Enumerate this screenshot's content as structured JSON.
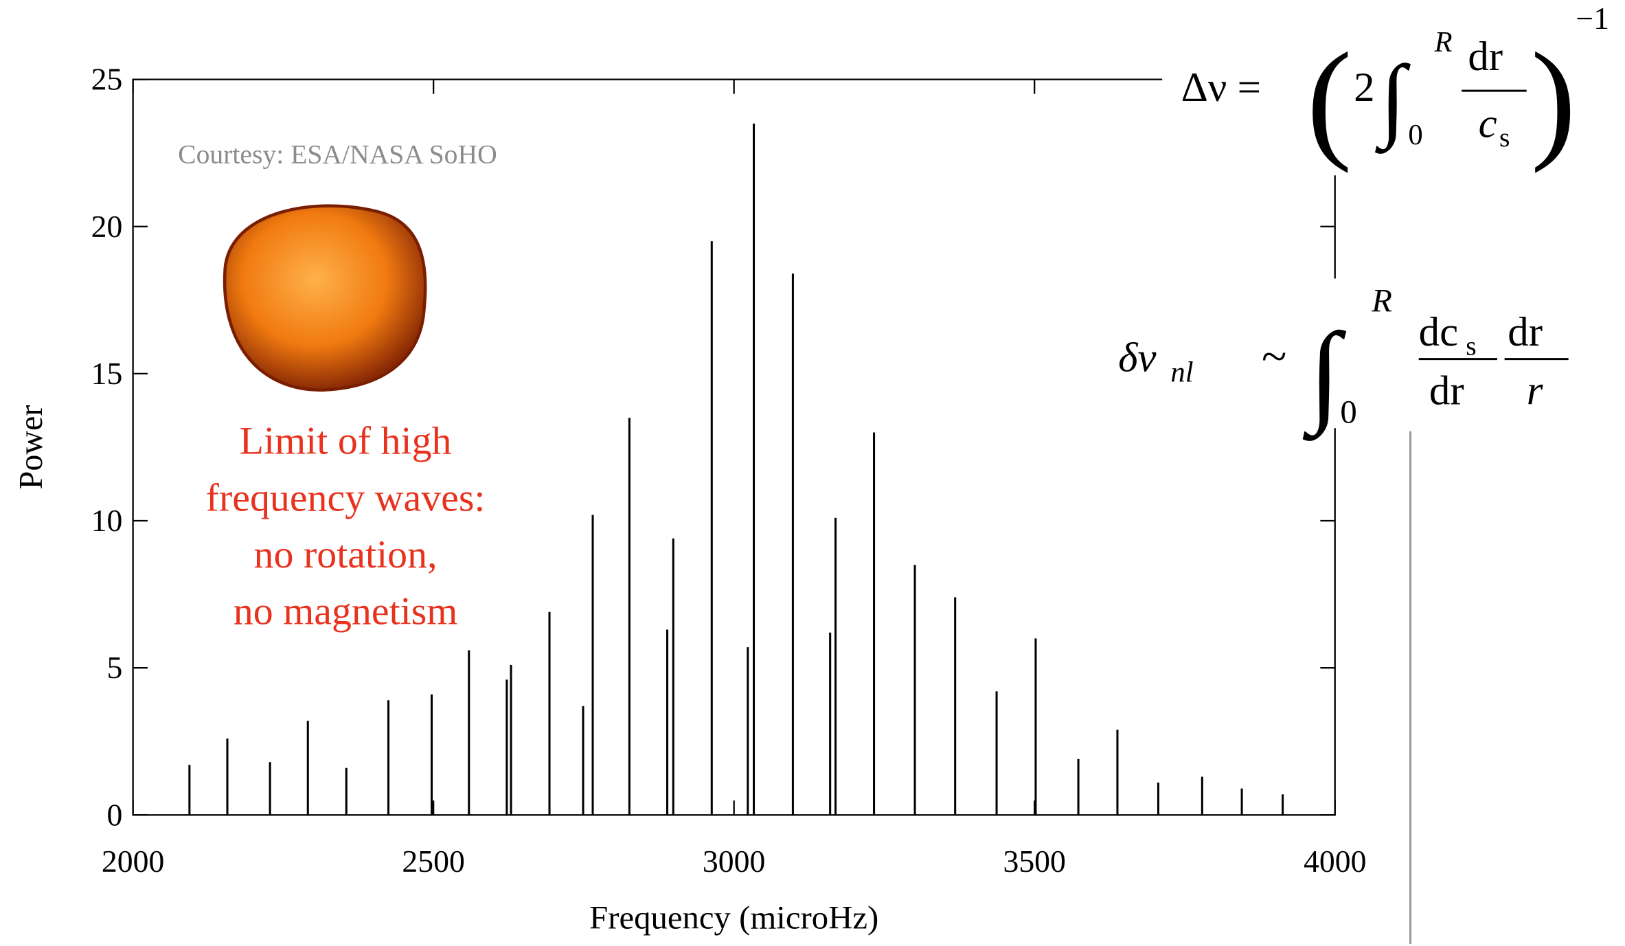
{
  "chart_data": {
    "type": "stem",
    "xlabel": "Frequency (microHz)",
    "ylabel": "Power",
    "xlim": [
      2000,
      4000
    ],
    "ylim": [
      0,
      25
    ],
    "xticks": [
      2000,
      2500,
      3000,
      3500,
      4000
    ],
    "yticks": [
      0,
      5,
      10,
      15,
      20,
      25
    ],
    "color": "#000000",
    "x": [
      2094,
      2157,
      2228,
      2291,
      2355,
      2425,
      2497,
      2559,
      2622,
      2629,
      2693,
      2749,
      2765,
      2826,
      2889,
      2899,
      2963,
      3023,
      3033,
      3098,
      3160,
      3169,
      3233,
      3301,
      3368,
      3437,
      3502,
      3573,
      3638,
      3706,
      3779,
      3845,
      3913
    ],
    "values": [
      1.7,
      2.6,
      1.8,
      3.2,
      1.6,
      3.9,
      4.1,
      5.6,
      4.6,
      5.1,
      6.9,
      3.7,
      10.2,
      13.5,
      6.3,
      9.4,
      19.5,
      5.7,
      23.5,
      18.4,
      6.2,
      10.1,
      13.0,
      8.5,
      7.4,
      4.2,
      6.0,
      1.9,
      2.9,
      1.1,
      1.3,
      0.9,
      0.7
    ]
  },
  "annotations": {
    "credit": "Courtesy: ESA/NASA SoHO",
    "note_lines": [
      "Limit of high",
      "frequency waves:",
      "no rotation,",
      "no magnetism"
    ],
    "equation_1": {
      "lhs": "Δν =",
      "open": "(",
      "coef": "2",
      "integral": "∫",
      "upper": "R",
      "lower": "0",
      "numerator": "dr",
      "denominator": "c",
      "denominator_sub": "s",
      "close": ")",
      "power": "−1"
    },
    "equation_2": {
      "lhs": "δν",
      "lhs_sub": "nl",
      "relation": "~",
      "integral": "∫",
      "upper": "R",
      "lower": "0",
      "numerator_1": "dc",
      "numerator_1_sub": "s",
      "denominator_1": "dr",
      "numerator_2": "dr",
      "denominator_2": "r"
    }
  }
}
